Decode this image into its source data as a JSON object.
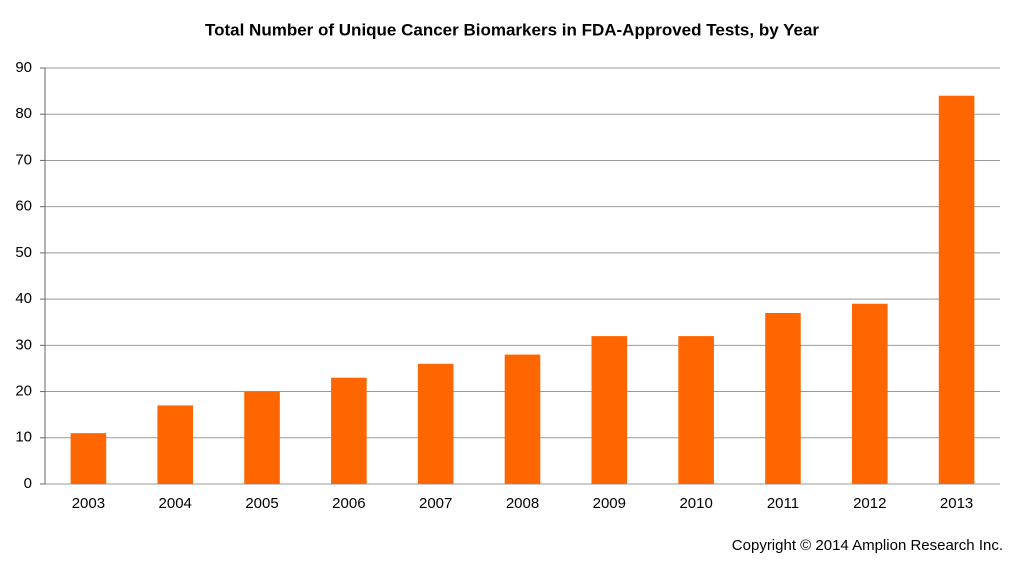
{
  "chart_data": {
    "type": "bar",
    "title": "Total Number of Unique Cancer Biomarkers in FDA-Approved Tests, by Year",
    "categories": [
      "2003",
      "2004",
      "2005",
      "2006",
      "2007",
      "2008",
      "2009",
      "2010",
      "2011",
      "2012",
      "2013"
    ],
    "values": [
      11,
      17,
      20,
      23,
      26,
      28,
      32,
      32,
      37,
      39,
      84
    ],
    "color": "#ff6600",
    "ylim": [
      0,
      90
    ],
    "yticks": [
      0,
      10,
      20,
      30,
      40,
      50,
      60,
      70,
      80,
      90
    ],
    "grid": true,
    "copyright": "Copyright © 2014 Amplion Research Inc."
  }
}
